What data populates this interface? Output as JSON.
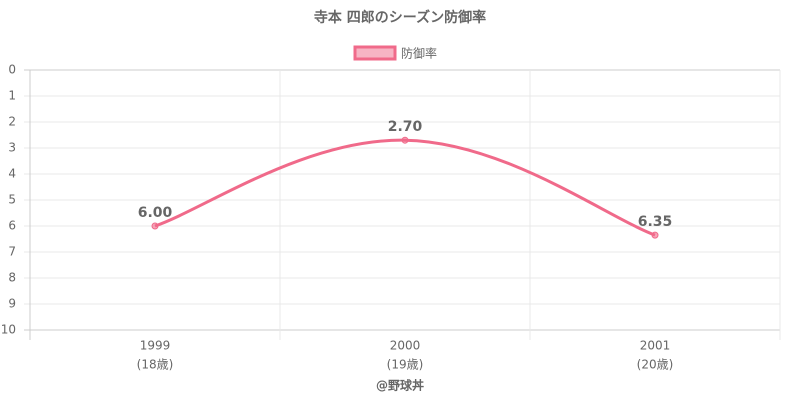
{
  "chart_data": {
    "type": "line",
    "title": "寺本 四郎のシーズン防御率",
    "categories": [
      "1999",
      "2000",
      "2001"
    ],
    "category_sublabels": [
      "(18歳)",
      "(19歳)",
      "(20歳)"
    ],
    "series": [
      {
        "name": "防御率",
        "color": "#f06a8a",
        "values": [
          6.0,
          2.7,
          6.35
        ],
        "value_labels": [
          "6.00",
          "2.70",
          "6.35"
        ]
      }
    ],
    "ylim": [
      0,
      10
    ],
    "y_reversed": true,
    "yticks": [
      0,
      1,
      2,
      3,
      4,
      5,
      6,
      7,
      8,
      9,
      10
    ],
    "grid": true,
    "credit": "@野球丼"
  }
}
